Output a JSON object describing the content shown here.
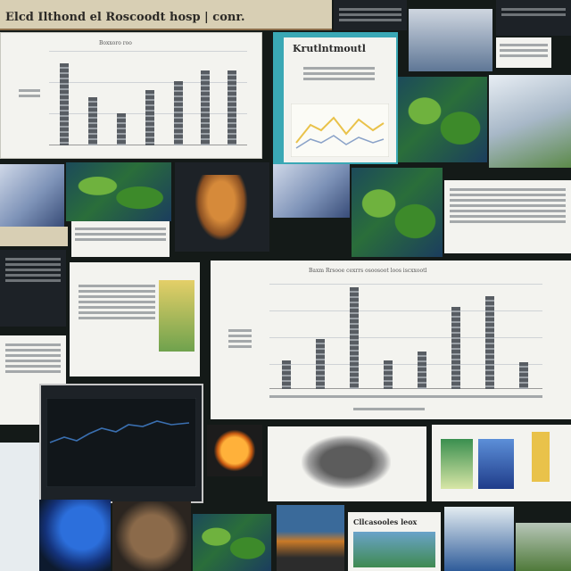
{
  "banner": {
    "title": "Elcd Ilthond el Roscoodt hosp | conr."
  },
  "chart_main": {
    "title": "Baxm Rrsooe cexrrs osoosoot loos iscxxootl"
  },
  "chart_top_left": {
    "title": "Boxxoro roo"
  },
  "chart_small": {
    "title": "Krutlntmoutl"
  },
  "callout_text": {
    "title": "Cllcasooles leox"
  },
  "colors": {
    "background": "#141a18",
    "panel_white": "#f3f3ef",
    "panel_dark": "#1d2227",
    "bar_dark": "#585d63",
    "line_blue": "#3a6fb0",
    "accent_yellow": "#e9c24a"
  }
}
